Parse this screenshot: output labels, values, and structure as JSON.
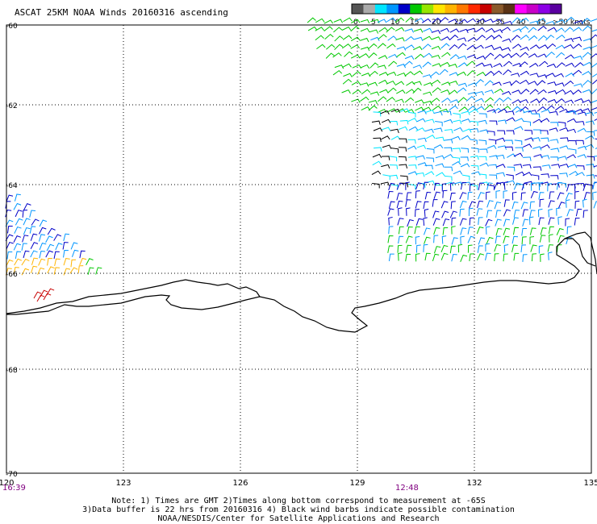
{
  "title": "ASCAT 25KM NOAA Winds 20160316 ascending",
  "legend": {
    "colors": [
      "#555555",
      "#aaaaaa",
      "#00e6ff",
      "#0096ff",
      "#0000c8",
      "#00c800",
      "#96e600",
      "#ffe600",
      "#ffb400",
      "#ff7800",
      "#ff2800",
      "#c80000",
      "#8b5a2b",
      "#5a3214",
      "#ff00ff",
      "#c800c8",
      "#8c00e6",
      "#5a00a0"
    ],
    "labels": [
      "0",
      "5",
      "10",
      "15",
      "20",
      "25",
      "30",
      "35",
      "40",
      "45",
      ">50 knots"
    ]
  },
  "lat_labels": [
    "-60",
    "-62",
    "-64",
    "-66",
    "-68",
    "-70"
  ],
  "lon_labels": [
    "120",
    "123",
    "126",
    "129",
    "132",
    "135"
  ],
  "time_labels": {
    "left": "16:39",
    "right": "12:48"
  },
  "notes": [
    "Note: 1) Times are GMT 2)Times along bottom correspond to measurement at -65S",
    "3)Data buffer is 22 hrs from 20160316 4) Black wind barbs indicate possible contamination",
    "NOAA/NESDIS/Center for Satellite Applications and Research"
  ],
  "colors": {
    "coast": "#000000",
    "grid": "#000000",
    "time": "#800080"
  }
}
